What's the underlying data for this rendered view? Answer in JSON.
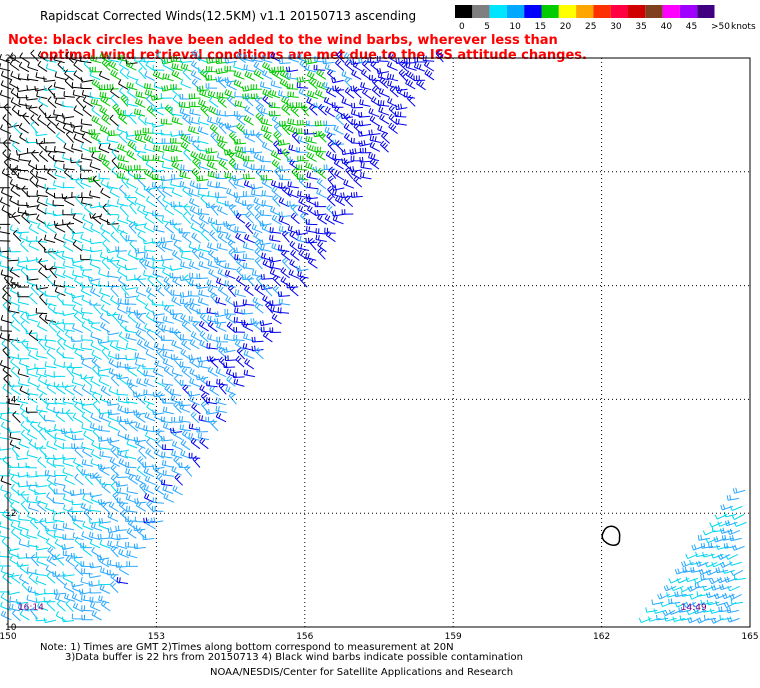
{
  "header": {
    "title": "Rapidscat Corrected Winds(12.5KM) v1.1 20150713 ascending",
    "note_line1": "Note: black circles have been added to the wind barbs, wherever less than",
    "note_line2": "optimal wind retrieval conditions are met due to the ISS attitude changes."
  },
  "footer": {
    "line1": "Note: 1) Times are GMT 2)Times along bottom correspond to measurement at 20N",
    "line2": "3)Data buffer is 22 hrs from 20150713 4) Black wind barbs indicate possible contamination",
    "line3": "NOAA/NESDIS/Center for Satellite Applications and Research"
  },
  "chart_data": {
    "type": "wind-barb-map",
    "x_ticks": [
      "150",
      "153",
      "156",
      "159",
      "162",
      "165"
    ],
    "y_ticks": [
      "20",
      "18",
      "16",
      "14",
      "12",
      "10"
    ],
    "xlim": [
      150,
      165
    ],
    "ylim": [
      10,
      20
    ],
    "grid": true,
    "time_labels": [
      {
        "text": "16:14",
        "lon": 150.2,
        "lat": 10.3,
        "color": "#800080"
      },
      {
        "text": "14:49",
        "lon": 163.6,
        "lat": 10.3,
        "color": "#800080"
      }
    ],
    "legend": {
      "units": "knots",
      "labels": [
        "0",
        "5",
        "10",
        "15",
        "20",
        "25",
        "30",
        "35",
        "40",
        "45",
        ">50"
      ],
      "colors": [
        "#000000",
        "#7f7f7f",
        "#00e5ff",
        "#00a8ff",
        "#0000ff",
        "#00cc00",
        "#ffff00",
        "#ffa500",
        "#ff3000",
        "#ff0040",
        "#d00000",
        "#804020",
        "#ff00ff",
        "#a000ff",
        "#400080"
      ]
    },
    "swaths": [
      {
        "description_free": true,
        "lon_start": 150.0,
        "lat_bottom": 10.0,
        "edge_top_lon": 159.0,
        "edge_bottom_lon": 152.0
      },
      {
        "lon_start": 163.0,
        "lat_top": 12.4,
        "edge_bottom_lon": 163.3
      }
    ],
    "contour": {
      "lon": 162.2,
      "lat": 11.6
    }
  }
}
